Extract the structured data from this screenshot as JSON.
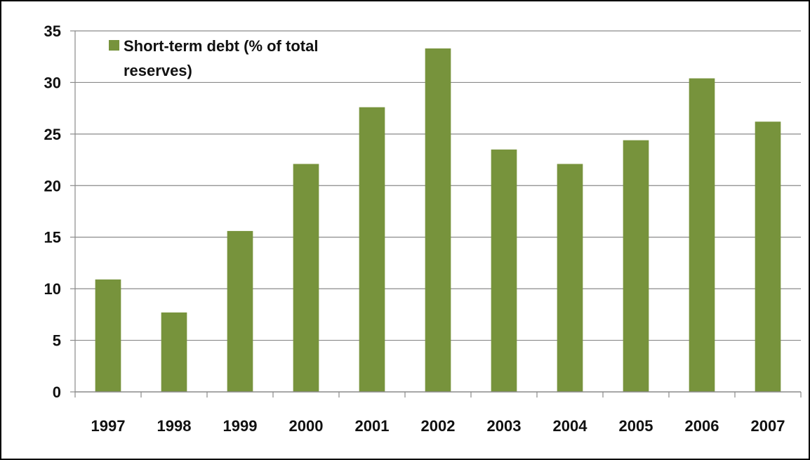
{
  "chart_data": {
    "type": "bar",
    "categories": [
      "1997",
      "1998",
      "1999",
      "2000",
      "2001",
      "2002",
      "2003",
      "2004",
      "2005",
      "2006",
      "2007"
    ],
    "series": [
      {
        "name": "Short-term debt (% of total reserves)",
        "values": [
          10.9,
          7.7,
          15.6,
          22.1,
          27.6,
          33.3,
          23.5,
          22.1,
          24.4,
          30.4,
          26.2
        ]
      }
    ],
    "ylim": [
      0,
      35
    ],
    "yticks": [
      "0",
      "5",
      "10",
      "15",
      "20",
      "25",
      "30",
      "35"
    ],
    "grid": true,
    "legend_position": "top-left",
    "bar_color": "#77933C",
    "legend": {
      "line1": "Short-term debt (% of total",
      "line2": "reserves)"
    }
  }
}
